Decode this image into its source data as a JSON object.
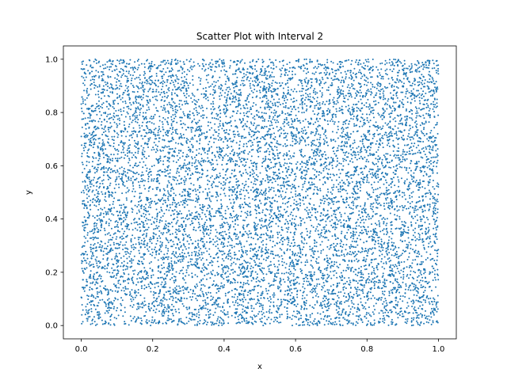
{
  "chart_data": {
    "type": "scatter",
    "title": "Scatter Plot with Interval 2",
    "xlabel": "x",
    "ylabel": "y",
    "xlim": [
      -0.05,
      1.05
    ],
    "ylim": [
      -0.05,
      1.05
    ],
    "xticks": [
      0.0,
      0.2,
      0.4,
      0.6,
      0.8,
      1.0
    ],
    "xtick_labels": [
      "0.0",
      "0.2",
      "0.4",
      "0.6",
      "0.8",
      "1.0"
    ],
    "yticks": [
      0.0,
      0.2,
      0.4,
      0.6,
      0.8,
      1.0
    ],
    "ytick_labels": [
      "0.0",
      "0.2",
      "0.4",
      "0.6",
      "0.8",
      "1.0"
    ],
    "grid": false,
    "legend": "none",
    "series": [
      {
        "color": "#1f77b4",
        "distribution": "uniform",
        "x_range": [
          0.0,
          1.0
        ],
        "y_range": [
          0.0,
          1.0
        ],
        "approx_point_count": 10000
      }
    ]
  }
}
